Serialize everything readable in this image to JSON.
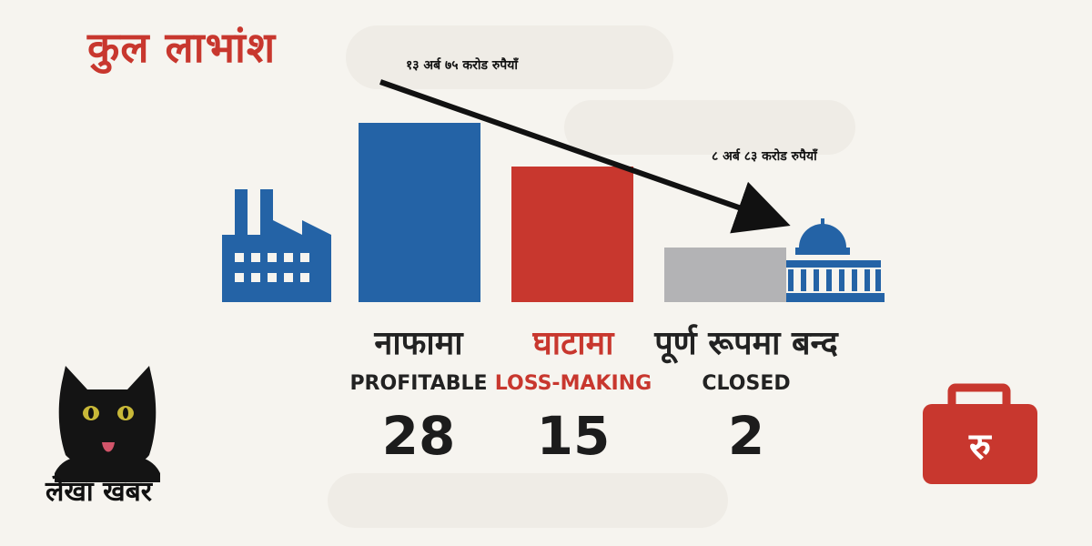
{
  "title": "कुल लाभांश",
  "arrow": {
    "start_label": "१३ अर्ब ७५ करोड रुपैयाँ",
    "end_label": "८ अर्ब ८३ करोड  रुपैयाँ"
  },
  "brand": "लेखा खबर",
  "colors": {
    "title": "#c8372e",
    "profitable": "#2463a6",
    "loss": "#c8372e",
    "closed": "#b3b3b5",
    "icon_blue": "#2463a6",
    "briefcase": "#c8372e"
  },
  "icons": [
    "factory-icon",
    "government-building-icon",
    "black-cat-mascot",
    "rupee-briefcase-icon"
  ],
  "briefcase_symbol": "रु",
  "chart_data": {
    "type": "bar",
    "categories": [
      "नाफामा",
      "घाटामा",
      "पूर्ण रूपमा बन्द"
    ],
    "categories_en": [
      "PROFITABLE",
      "LOSS-MAKING",
      "CLOSED"
    ],
    "values": [
      28,
      15,
      2
    ],
    "value_labels": [
      "28",
      "15",
      "2"
    ],
    "ylim": [
      0,
      30
    ],
    "grid": false
  }
}
